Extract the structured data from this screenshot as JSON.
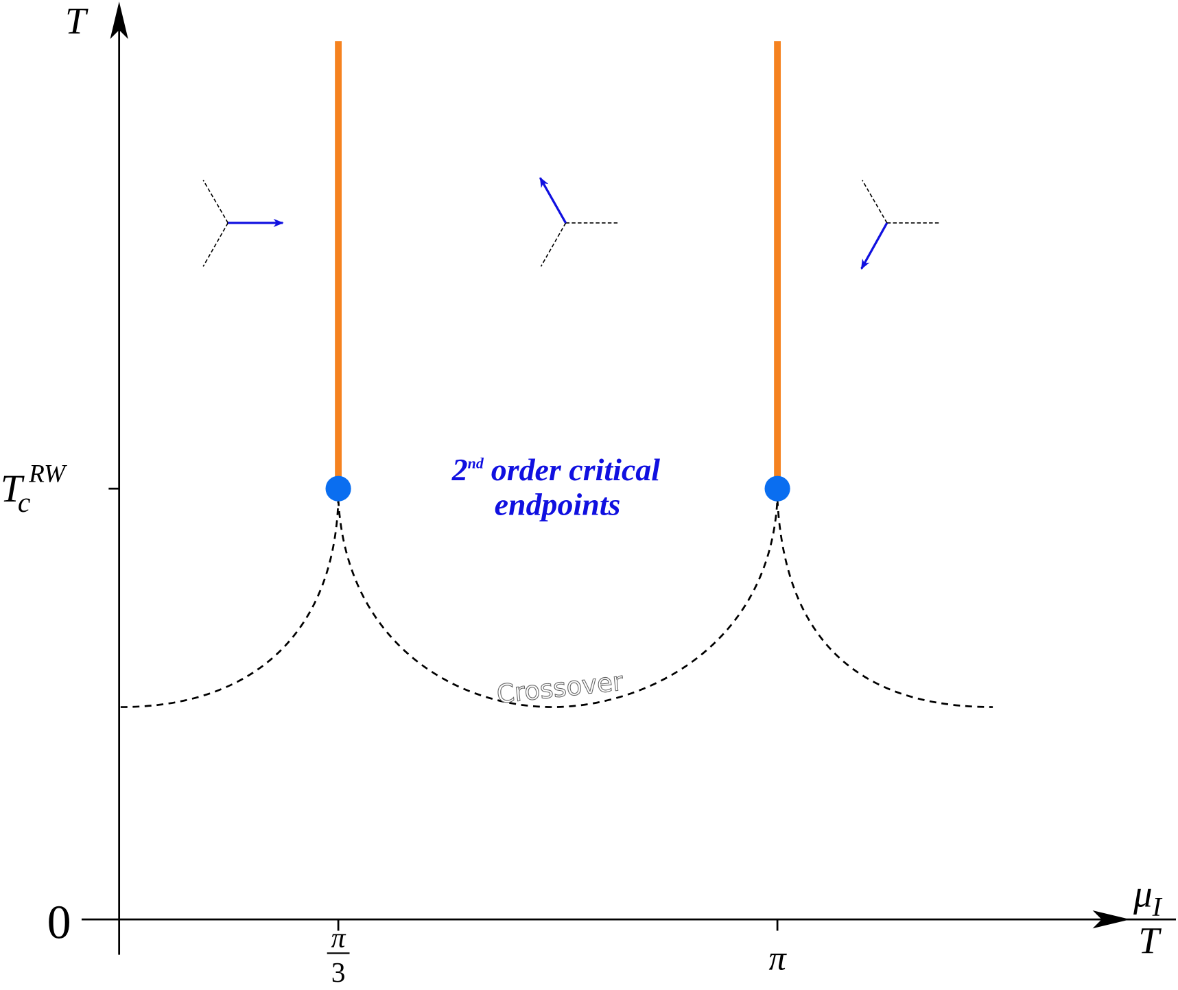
{
  "axes": {
    "y": {
      "label": "T",
      "ticks": [
        {
          "label": "0"
        },
        {
          "base": "T",
          "sub": "c",
          "sup": "RW"
        }
      ]
    },
    "x": {
      "label": {
        "numerator": {
          "base": "μ",
          "sub": "I"
        },
        "denominator": "T"
      },
      "ticks": [
        {
          "numerator": "π",
          "denominator": "3"
        },
        {
          "label": "π"
        }
      ]
    }
  },
  "annotations": {
    "endpoints": {
      "ordinal": "2",
      "suffix": "nd",
      "line1": "order critical",
      "line2": "endpoints"
    },
    "crossover": "Crossover"
  }
}
